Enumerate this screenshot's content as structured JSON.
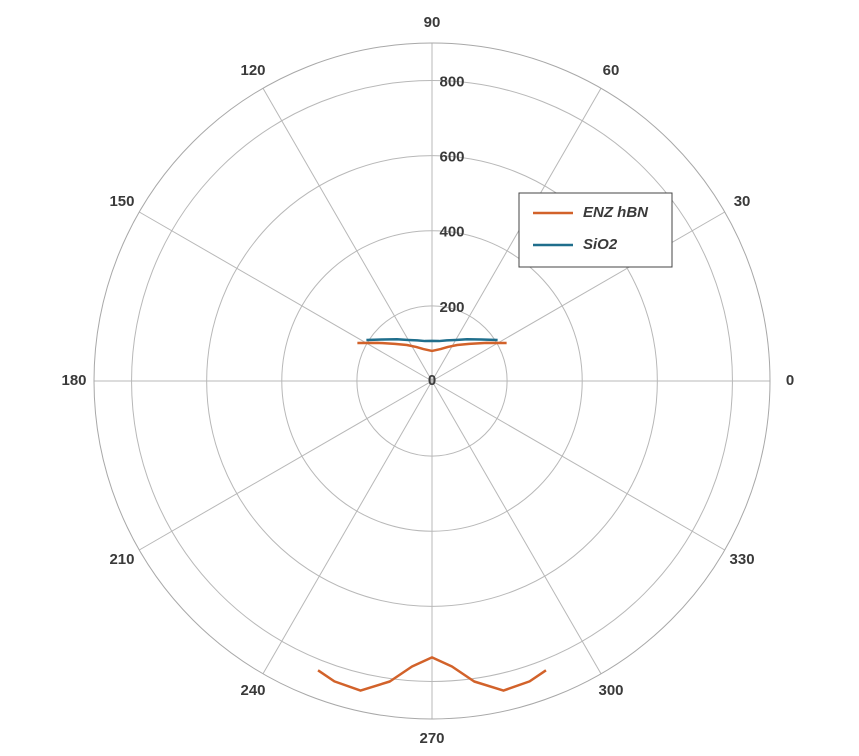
{
  "chart_data": {
    "type": "polar",
    "rlim": [
      0,
      900
    ],
    "rticks": [
      0,
      200,
      400,
      600,
      800
    ],
    "thetaticks": [
      0,
      30,
      60,
      90,
      120,
      150,
      180,
      210,
      240,
      270,
      300,
      330
    ],
    "grid": true,
    "legend": "upper right",
    "series": [
      {
        "name": "ENZ hBN",
        "color": "#d2622a",
        "theta": [
          27,
          35,
          45,
          55,
          65,
          75,
          90,
          105,
          115,
          125,
          135,
          145,
          153,
          null,
          248.5,
          252,
          257,
          262,
          266,
          270,
          274,
          278,
          283,
          288,
          291.5
        ],
        "r": [
          223,
          177,
          140,
          117,
          100,
          88,
          80,
          88,
          100,
          117,
          140,
          177,
          223,
          null,
          828,
          841,
          846,
          808,
          762,
          736,
          762,
          808,
          846,
          841,
          828
        ]
      },
      {
        "name": "SiO2",
        "color": "#1f6e8c",
        "theta": [
          32,
          40,
          50,
          60,
          70,
          80,
          90,
          100,
          110,
          120,
          130,
          140,
          148
        ],
        "r": [
          206,
          172,
          145,
          126,
          115,
          108,
          107,
          108,
          115,
          126,
          145,
          172,
          206
        ]
      }
    ]
  }
}
